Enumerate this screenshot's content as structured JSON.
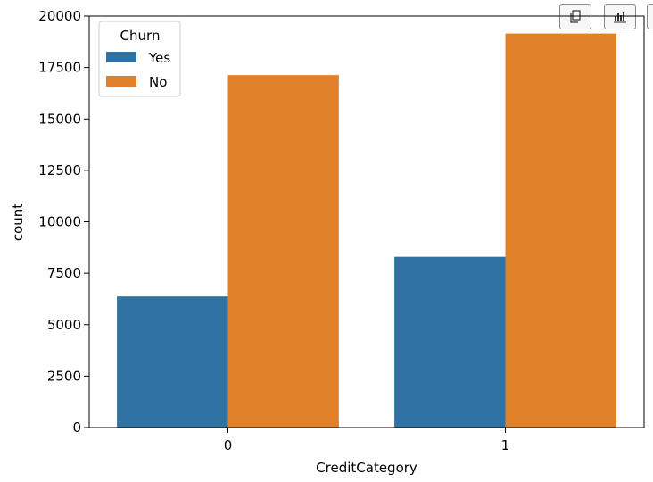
{
  "toolbar": {
    "buttons": [
      {
        "name": "copy-button",
        "icon": "copy-icon"
      },
      {
        "name": "chart-view-button",
        "icon": "bar-chart-icon"
      },
      {
        "name": "more-button",
        "icon": "more-icon"
      }
    ]
  },
  "chart_data": {
    "type": "bar",
    "title": "",
    "xlabel": "CreditCategory",
    "ylabel": "count",
    "categories": [
      "0",
      "1"
    ],
    "series": [
      {
        "name": "Yes",
        "color": "#2f73a4",
        "values": [
          6370,
          8300
        ]
      },
      {
        "name": "No",
        "color": "#e1822b",
        "values": [
          17130,
          19150
        ]
      }
    ],
    "ylim": [
      0,
      20000
    ],
    "yticks": [
      0,
      2500,
      5000,
      7500,
      10000,
      12500,
      15000,
      17500,
      20000
    ],
    "legend": {
      "title": "Churn",
      "position": "top-left"
    },
    "grid": false
  }
}
